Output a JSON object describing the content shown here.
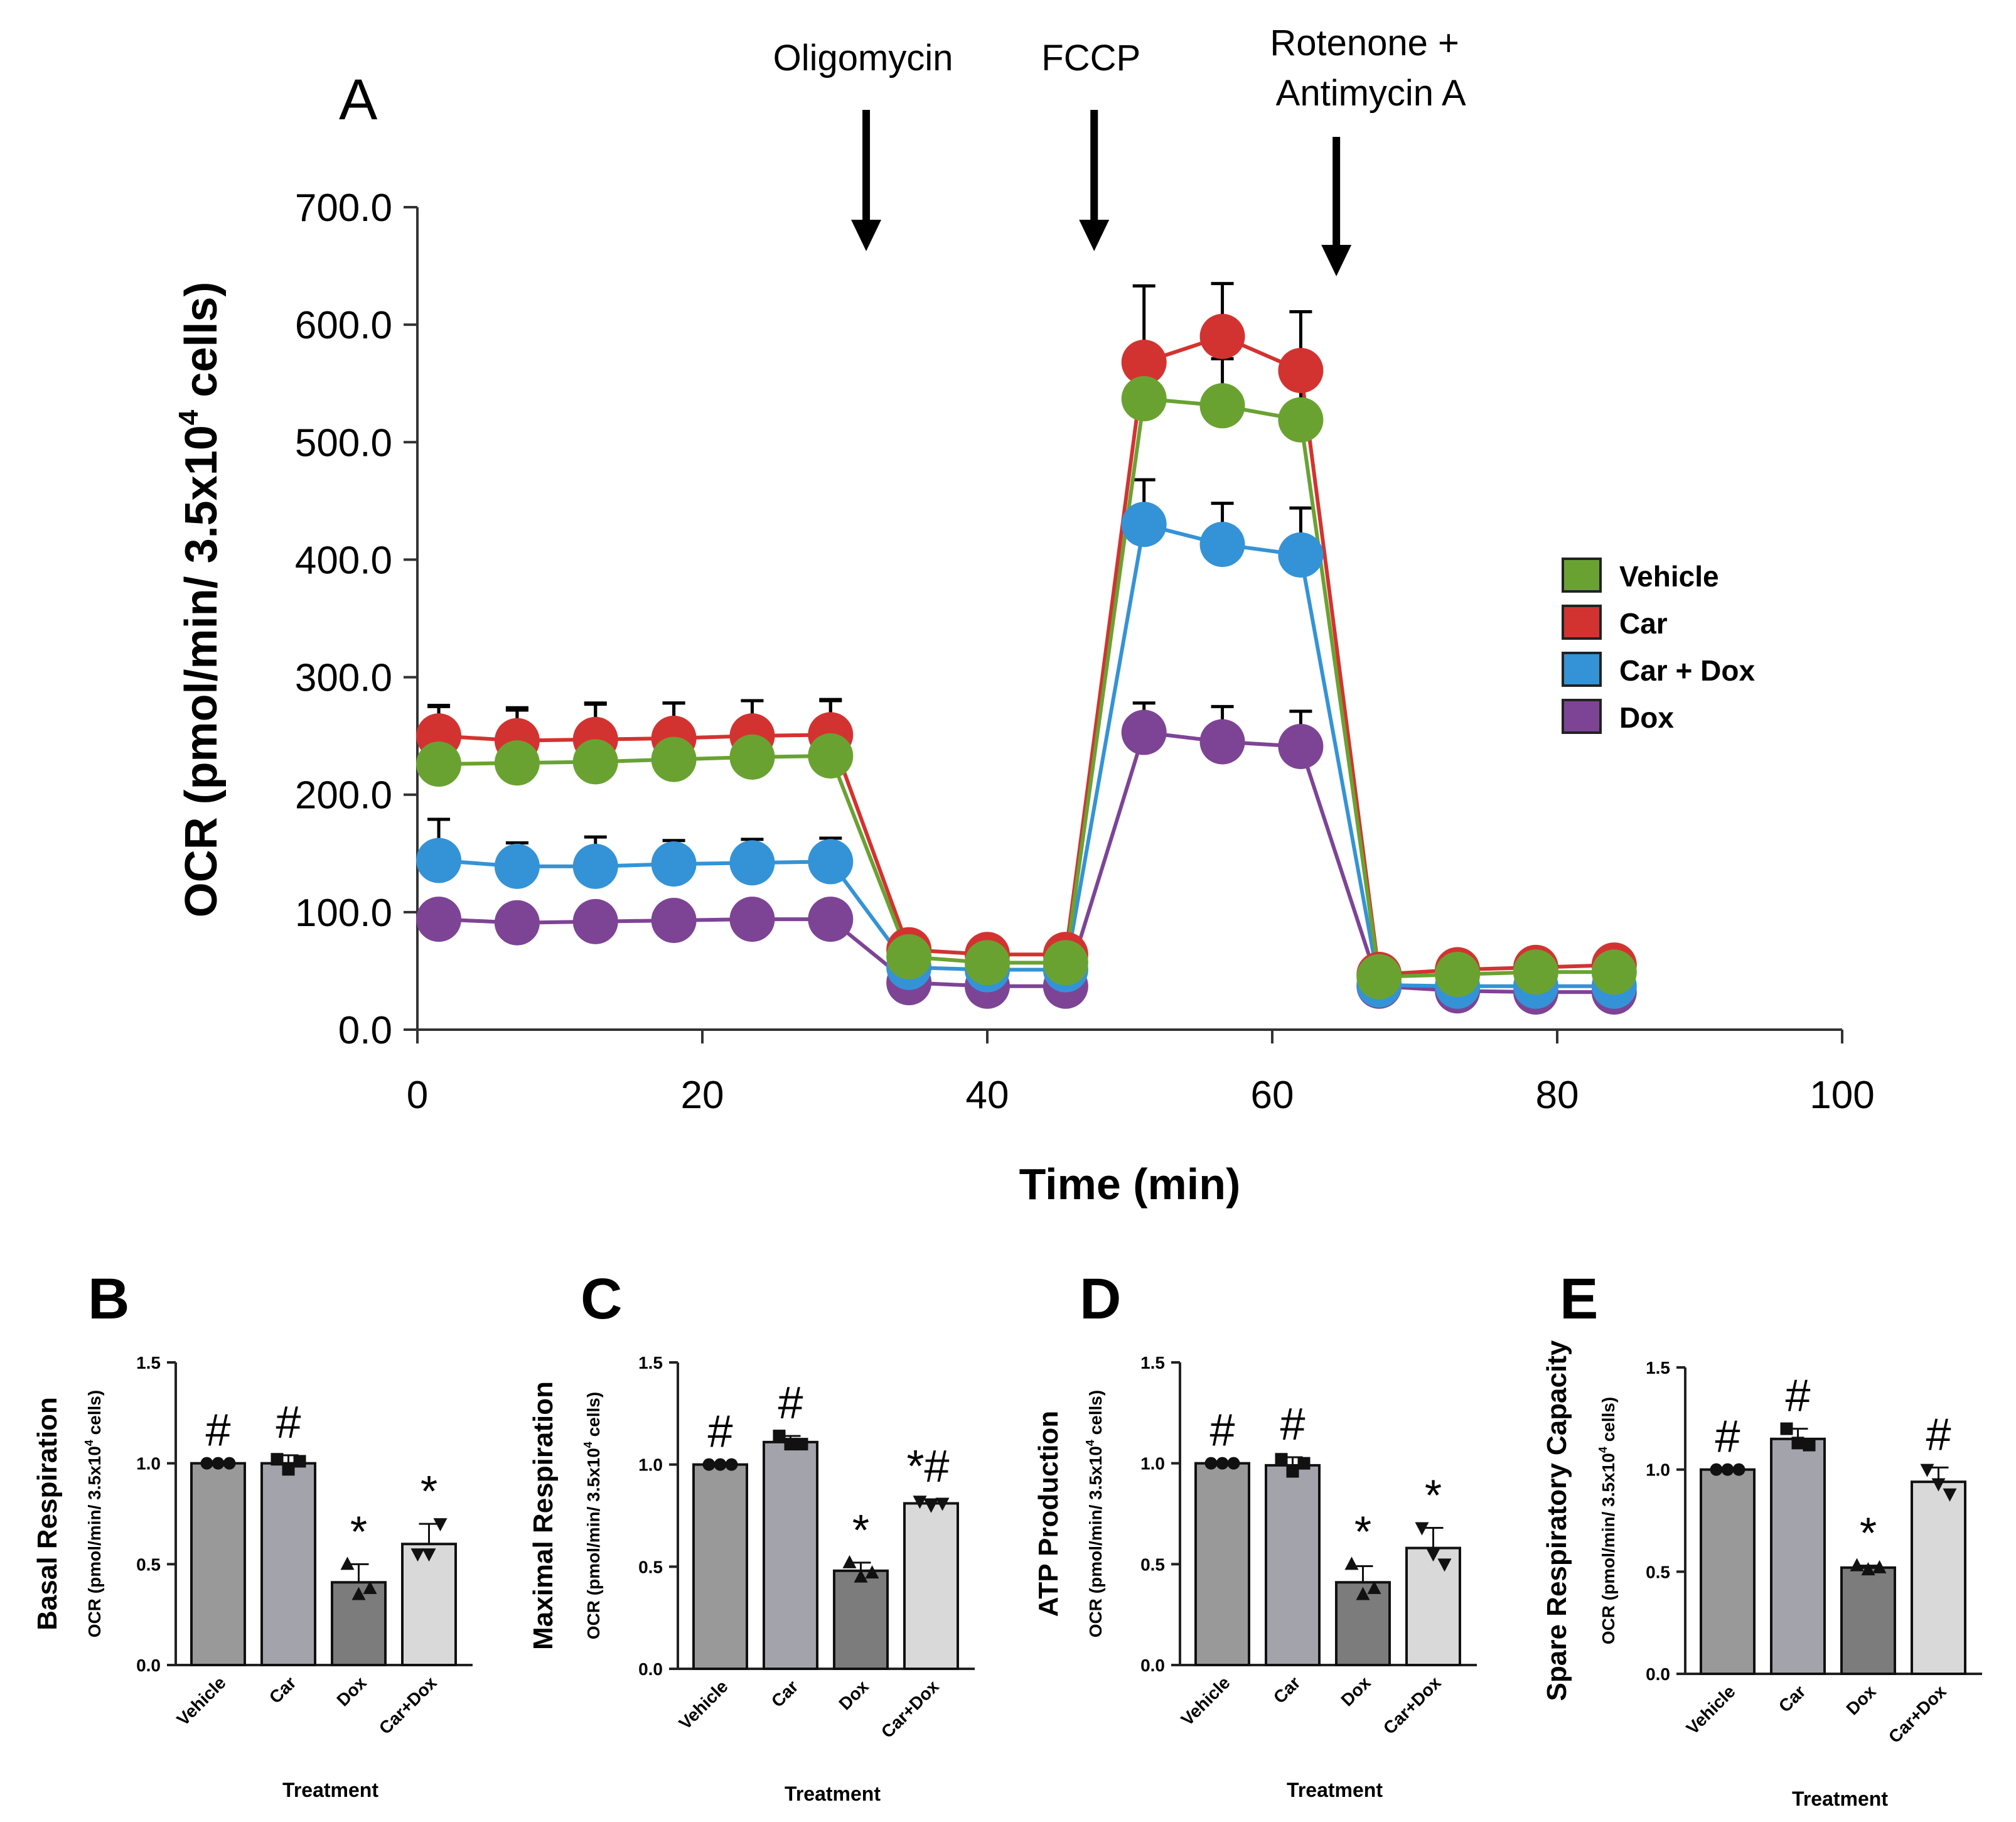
{
  "chart_data": [
    {
      "panel": "A",
      "type": "line",
      "ylabel": "OCR (pmol/min/ 3.5x10",
      "ylabel_sup": "4",
      "ylabel_tail": " cells)",
      "xlabel": "Time (min)",
      "xlim": [
        0,
        100
      ],
      "ylim": [
        0,
        700
      ],
      "x_ticks": [
        "0",
        "20",
        "40",
        "60",
        "80",
        "100"
      ],
      "y_ticks": [
        "0.0",
        "100.0",
        "200.0",
        "300.0",
        "400.0",
        "500.0",
        "600.0",
        "700.0"
      ],
      "injections": [
        {
          "label": "Oligomycin",
          "label2": "",
          "x": 31.5
        },
        {
          "label": "FCCP",
          "label2": "",
          "x": 47.5
        },
        {
          "label": "Rotenone +",
          "label2": "Antimycin A",
          "x": 64.5
        }
      ],
      "x": [
        1.5,
        7,
        12.5,
        18,
        23.5,
        29,
        34.5,
        40,
        45.5,
        51,
        56.5,
        62,
        67.5,
        73,
        78.5,
        84
      ],
      "series": [
        {
          "name": "Vehicle",
          "color": "#6aa232",
          "values": [
            226,
            227,
            228,
            230,
            232,
            233,
            62,
            57,
            57,
            537,
            531,
            519,
            45,
            47,
            49,
            49
          ],
          "errors": [
            50,
            45,
            50,
            48,
            48,
            47,
            5,
            5,
            5,
            40,
            40,
            45,
            5,
            5,
            5,
            5
          ]
        },
        {
          "name": "Car",
          "color": "#d33330",
          "values": [
            250,
            246,
            247,
            248,
            250,
            251,
            68,
            64,
            64,
            568,
            590,
            561,
            47,
            51,
            53,
            55
          ],
          "errors": [
            25,
            28,
            30,
            30,
            30,
            30,
            5,
            5,
            5,
            65,
            45,
            50,
            5,
            5,
            5,
            5
          ]
        },
        {
          "name": "Car + Dox",
          "color": "#3493d6",
          "values": [
            144,
            139,
            139,
            141,
            142,
            143,
            53,
            51,
            51,
            430,
            413,
            404,
            38,
            37,
            37,
            37
          ],
          "errors": [
            35,
            20,
            25,
            20,
            20,
            20,
            5,
            5,
            5,
            38,
            35,
            40,
            5,
            5,
            5,
            5
          ]
        },
        {
          "name": "Dox",
          "color": "#7d4496",
          "values": [
            94,
            91,
            92,
            93,
            94,
            94,
            40,
            37,
            37,
            253,
            245,
            241,
            37,
            33,
            32,
            32
          ],
          "errors": [
            5,
            5,
            5,
            5,
            5,
            5,
            5,
            5,
            5,
            25,
            30,
            30,
            5,
            5,
            5,
            5
          ]
        }
      ]
    },
    {
      "panel": "B",
      "type": "bar",
      "ylabel": "Basal Respiration",
      "ylabel2": "OCR (pmol/min/ 3.5x10",
      "ylabel2_sup": "4",
      "ylabel2_tail": " cells)",
      "xlabel": "Treatment",
      "categories": [
        "Vehicle",
        "Car",
        "Dox",
        "Car+Dox"
      ],
      "values": [
        1.0,
        1.0,
        0.41,
        0.6
      ],
      "errors": [
        0,
        0.04,
        0.09,
        0.1
      ],
      "points": [
        [
          1.0,
          1.0,
          1.0
        ],
        [
          1.02,
          0.97,
          1.01
        ],
        [
          0.5,
          0.35,
          0.38
        ],
        [
          0.55,
          0.55,
          0.7
        ]
      ],
      "markers": [
        "circle",
        "square",
        "triangle",
        "tri-down"
      ],
      "annotations": [
        "#",
        "#",
        "*",
        "*"
      ],
      "ylim": [
        0,
        1.5
      ],
      "y_ticks": [
        "0.0",
        "0.5",
        "1.0",
        "1.5"
      ]
    },
    {
      "panel": "C",
      "type": "bar",
      "ylabel": "Maximal  Respiration",
      "ylabel2": "OCR (pmol/min/ 3.5x10",
      "ylabel2_sup": "4",
      "ylabel2_tail": " cells)",
      "xlabel": "Treatment",
      "categories": [
        "Vehicle",
        "Car",
        "Dox",
        "Car+Dox"
      ],
      "values": [
        1.0,
        1.11,
        0.48,
        0.81
      ],
      "errors": [
        0,
        0.03,
        0.04,
        0.02
      ],
      "points": [
        [
          1.0,
          1.0,
          1.0
        ],
        [
          1.14,
          1.1,
          1.1
        ],
        [
          0.52,
          0.45,
          0.47
        ],
        [
          0.82,
          0.8,
          0.81
        ]
      ],
      "markers": [
        "circle",
        "square",
        "triangle",
        "tri-down"
      ],
      "annotations": [
        "#",
        "#",
        "*",
        "*#"
      ],
      "ylim": [
        0,
        1.5
      ],
      "y_ticks": [
        "0.0",
        "0.5",
        "1.0",
        "1.5"
      ]
    },
    {
      "panel": "D",
      "type": "bar",
      "ylabel": "ATP Production",
      "ylabel2": "OCR (pmol/min/ 3.5x10",
      "ylabel2_sup": "4",
      "ylabel2_tail": " cells)",
      "xlabel": "Treatment",
      "categories": [
        "Vehicle",
        "Car",
        "Dox",
        "Car+Dox"
      ],
      "values": [
        1.0,
        0.99,
        0.41,
        0.58
      ],
      "errors": [
        0,
        0.04,
        0.08,
        0.1
      ],
      "points": [
        [
          1.0,
          1.0,
          1.0
        ],
        [
          1.02,
          0.96,
          1.0
        ],
        [
          0.5,
          0.35,
          0.38
        ],
        [
          0.68,
          0.55,
          0.5
        ]
      ],
      "markers": [
        "circle",
        "square",
        "triangle",
        "tri-down"
      ],
      "annotations": [
        "#",
        "#",
        "*",
        "*"
      ],
      "ylim": [
        0,
        1.5
      ],
      "y_ticks": [
        "0.0",
        "0.5",
        "1.0",
        "1.5"
      ]
    },
    {
      "panel": "E",
      "type": "bar",
      "ylabel": "Spare Respiratory  Capacity",
      "ylabel2": "OCR (pmol/min/ 3.5x10",
      "ylabel2_sup": "4",
      "ylabel2_tail": " cells)",
      "xlabel": "Treatment",
      "categories": [
        "Vehicle",
        "Car",
        "Dox",
        "Car+Dox"
      ],
      "values": [
        1.0,
        1.15,
        0.52,
        0.94
      ],
      "errors": [
        0,
        0.05,
        0.01,
        0.07
      ],
      "points": [
        [
          1.0,
          1.0,
          1.0
        ],
        [
          1.2,
          1.13,
          1.12
        ],
        [
          0.53,
          0.51,
          0.52
        ],
        [
          1.0,
          0.93,
          0.88
        ]
      ],
      "markers": [
        "circle",
        "square",
        "triangle",
        "tri-down"
      ],
      "annotations": [
        "#",
        "#",
        "*",
        "#"
      ],
      "ylim": [
        0,
        1.5
      ],
      "y_ticks": [
        "0.0",
        "0.5",
        "1.0",
        "1.5"
      ]
    }
  ],
  "bar_colors": [
    "#999999",
    "#a3a3ab",
    "#7c7c7c",
    "#d9d9d9"
  ]
}
